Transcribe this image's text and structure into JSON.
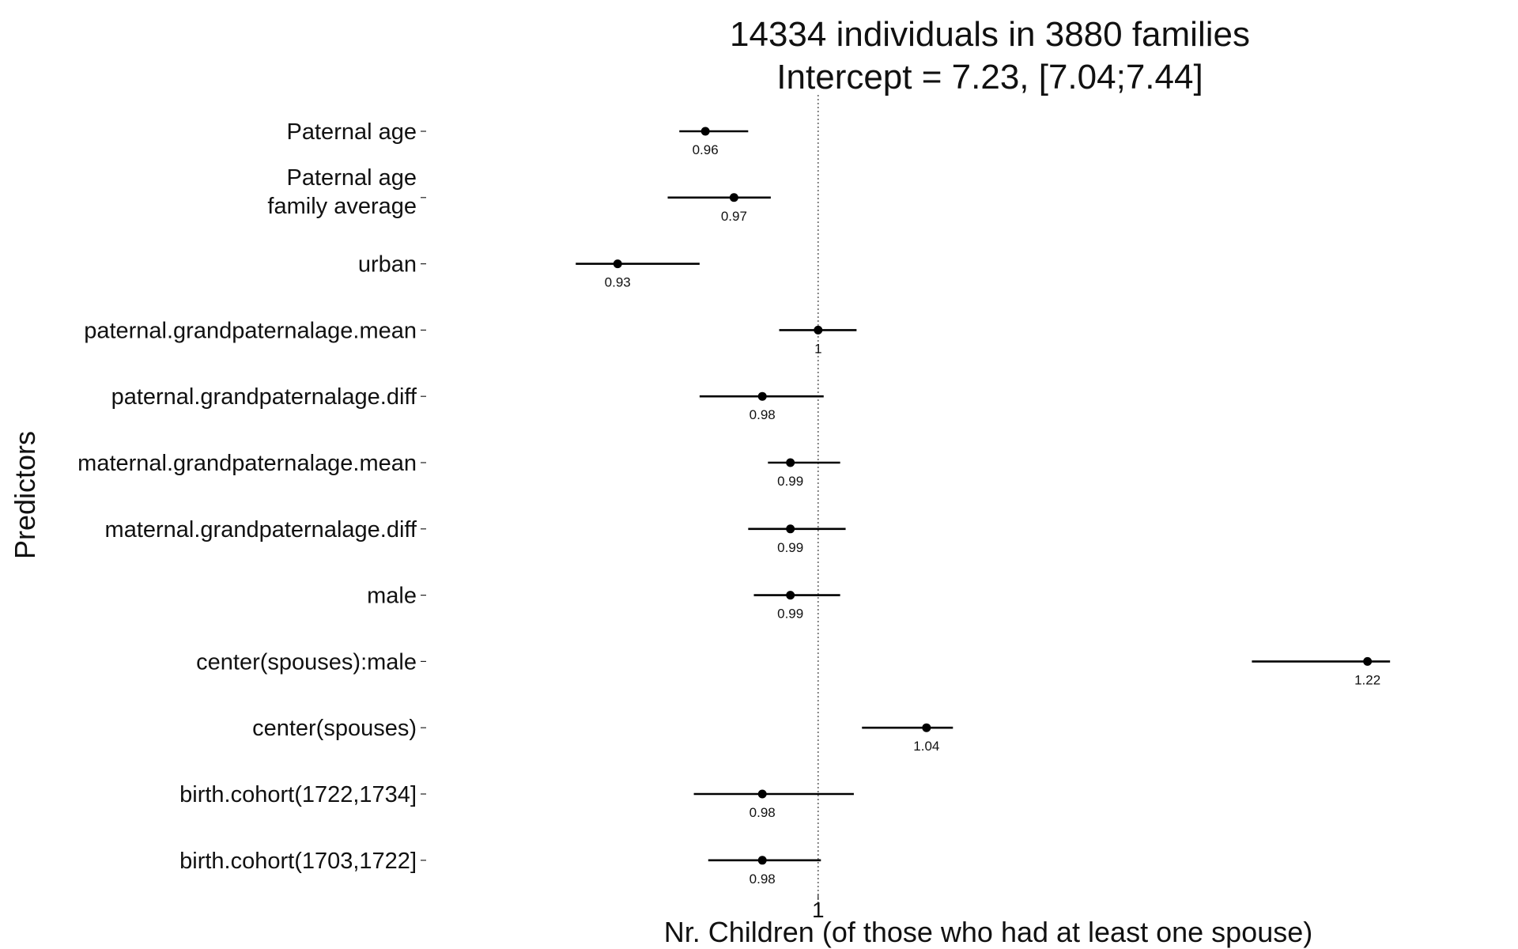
{
  "chart_data": {
    "type": "forest",
    "title": [
      "14334 individuals in 3880 families",
      "Intercept = 7.23, [7.04;7.44]"
    ],
    "xlabel": "Nr. Children (of those who had at least one spouse)",
    "ylabel": "Predictors",
    "x_scale": "log",
    "reference_line": 1,
    "xlim": [
      0.883,
      1.27
    ],
    "x_ticks": [
      1
    ],
    "x_tick_labels": [
      "1"
    ],
    "grid": false,
    "predictors": [
      {
        "label": [
          "Paternal age"
        ],
        "estimate": 0.96,
        "estimate_label": "0.96",
        "ci": [
          0.951,
          0.975
        ]
      },
      {
        "label": [
          "Paternal age",
          "family average"
        ],
        "estimate": 0.97,
        "estimate_label": "0.97",
        "ci": [
          0.947,
          0.983
        ]
      },
      {
        "label": [
          "urban"
        ],
        "estimate": 0.93,
        "estimate_label": "0.93",
        "ci": [
          0.916,
          0.958
        ]
      },
      {
        "label": [
          "paternal.grandpaternalage.mean"
        ],
        "estimate": 1.0,
        "estimate_label": "1",
        "ci": [
          0.986,
          1.014
        ]
      },
      {
        "label": [
          "paternal.grandpaternalage.diff"
        ],
        "estimate": 0.98,
        "estimate_label": "0.98",
        "ci": [
          0.958,
          1.002
        ]
      },
      {
        "label": [
          "maternal.grandpaternalage.mean"
        ],
        "estimate": 0.99,
        "estimate_label": "0.99",
        "ci": [
          0.982,
          1.008
        ]
      },
      {
        "label": [
          "maternal.grandpaternalage.diff"
        ],
        "estimate": 0.99,
        "estimate_label": "0.99",
        "ci": [
          0.975,
          1.01
        ]
      },
      {
        "label": [
          "male"
        ],
        "estimate": 0.99,
        "estimate_label": "0.99",
        "ci": [
          0.977,
          1.008
        ]
      },
      {
        "label": [
          "center(spouses):male"
        ],
        "estimate": 1.22,
        "estimate_label": "1.22",
        "ci": [
          1.17,
          1.23
        ]
      },
      {
        "label": [
          "center(spouses)"
        ],
        "estimate": 1.04,
        "estimate_label": "1.04",
        "ci": [
          1.016,
          1.05
        ]
      },
      {
        "label": [
          "birth.cohort(1722,1734]"
        ],
        "estimate": 0.98,
        "estimate_label": "0.98",
        "ci": [
          0.956,
          1.013
        ]
      },
      {
        "label": [
          "birth.cohort(1703,1722]"
        ],
        "estimate": 0.98,
        "estimate_label": "0.98",
        "ci": [
          0.961,
          1.001
        ]
      }
    ]
  }
}
